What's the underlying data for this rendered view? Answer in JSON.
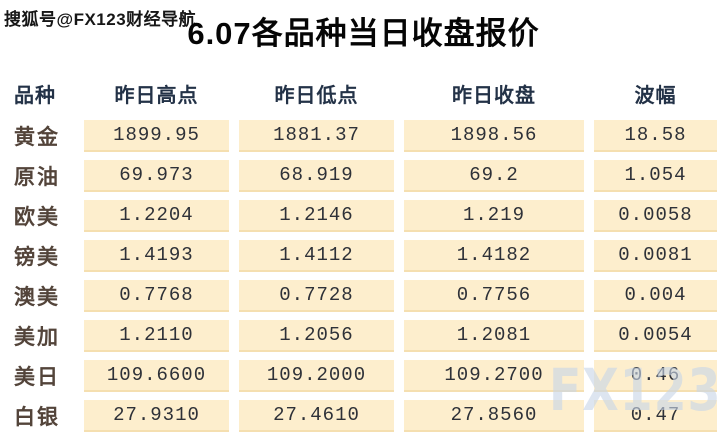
{
  "watermarks": {
    "top_left": "搜狐号@FX123财经导航",
    "brand": "FX123"
  },
  "chart_data": {
    "type": "table",
    "title": "6.07各品种当日收盘报价",
    "columns": [
      "品种",
      "昨日高点",
      "昨日低点",
      "昨日收盘",
      "波幅"
    ],
    "rows": [
      {
        "name": "黄金",
        "high": "1899.95",
        "low": "1881.37",
        "close": "1898.56",
        "range": "18.58"
      },
      {
        "name": "原油",
        "high": "69.973",
        "low": "68.919",
        "close": "69.2",
        "range": "1.054"
      },
      {
        "name": "欧美",
        "high": "1.2204",
        "low": "1.2146",
        "close": "1.219",
        "range": "0.0058"
      },
      {
        "name": "镑美",
        "high": "1.4193",
        "low": "1.4112",
        "close": "1.4182",
        "range": "0.0081"
      },
      {
        "name": "澳美",
        "high": "0.7768",
        "low": "0.7728",
        "close": "0.7756",
        "range": "0.004"
      },
      {
        "name": "美加",
        "high": "1.2110",
        "low": "1.2056",
        "close": "1.2081",
        "range": "0.0054"
      },
      {
        "name": "美日",
        "high": "109.6600",
        "low": "109.2000",
        "close": "109.2700",
        "range": "0.46"
      },
      {
        "name": "白银",
        "high": "27.9310",
        "low": "27.4610",
        "close": "27.8560",
        "range": "0.47"
      }
    ],
    "layout_hints": {
      "row_background": "#fdeecd",
      "header_text_color": "#233247",
      "label_text_color": "#53443a",
      "value_text_color": "#2e3138",
      "grid": "off"
    }
  }
}
